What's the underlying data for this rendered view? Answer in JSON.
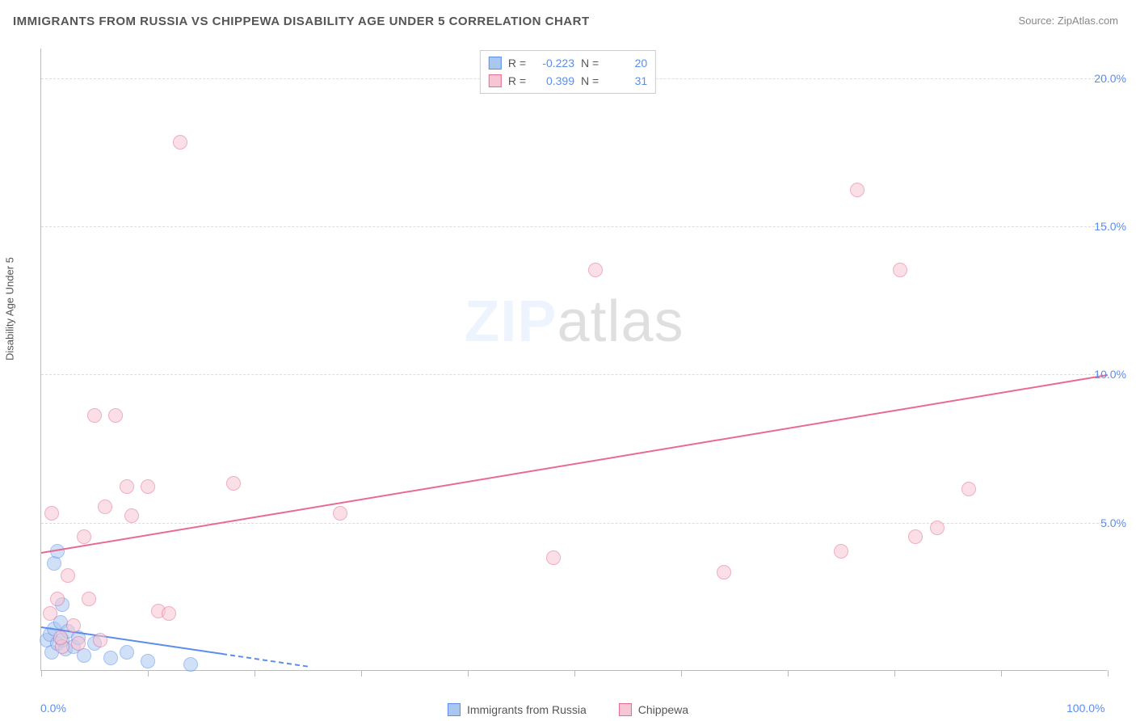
{
  "title": "IMMIGRANTS FROM RUSSIA VS CHIPPEWA DISABILITY AGE UNDER 5 CORRELATION CHART",
  "source": "Source: ZipAtlas.com",
  "watermark": {
    "bold": "ZIP",
    "rest": "atlas"
  },
  "ylabel": "Disability Age Under 5",
  "xlim": [
    0,
    100
  ],
  "ylim": [
    0,
    21
  ],
  "x_ticks": [
    0,
    10,
    20,
    30,
    40,
    50,
    60,
    70,
    80,
    90,
    100
  ],
  "x_tick_labels": {
    "0": "0.0%",
    "100": "100.0%"
  },
  "y_gridlines": [
    5,
    10,
    15,
    20
  ],
  "y_tick_labels": {
    "5": "5.0%",
    "10": "10.0%",
    "15": "15.0%",
    "20": "20.0%"
  },
  "colors": {
    "series_a_fill": "#aac7ef",
    "series_a_stroke": "#5b8def",
    "series_b_fill": "#f7c6d4",
    "series_b_stroke": "#e86a92",
    "grid": "#dddddd",
    "axis": "#bbbbbb",
    "tick_text": "#5b8def",
    "text": "#555555"
  },
  "point_radius": 9,
  "point_opacity": 0.55,
  "series": [
    {
      "key": "russia",
      "label": "Immigrants from Russia",
      "fill": "#aac7ef",
      "stroke": "#5b8def",
      "R": "-0.223",
      "N": "20",
      "trend": {
        "x1": 0,
        "y1": 1.5,
        "x2": 17,
        "y2": 0.6,
        "dash_to_x": 25
      },
      "points": [
        [
          0.5,
          1.0
        ],
        [
          0.8,
          1.2
        ],
        [
          1.0,
          0.6
        ],
        [
          1.2,
          1.4
        ],
        [
          1.5,
          0.9
        ],
        [
          1.8,
          1.6
        ],
        [
          2.0,
          1.0
        ],
        [
          2.3,
          0.7
        ],
        [
          2.5,
          1.3
        ],
        [
          1.2,
          3.6
        ],
        [
          1.5,
          4.0
        ],
        [
          3.0,
          0.8
        ],
        [
          3.5,
          1.1
        ],
        [
          4.0,
          0.5
        ],
        [
          5.0,
          0.9
        ],
        [
          6.5,
          0.4
        ],
        [
          8.0,
          0.6
        ],
        [
          10.0,
          0.3
        ],
        [
          2.0,
          2.2
        ],
        [
          14.0,
          0.2
        ]
      ]
    },
    {
      "key": "chippewa",
      "label": "Chippewa",
      "fill": "#f7c6d4",
      "stroke": "#e86a92",
      "R": "0.399",
      "N": "31",
      "trend": {
        "x1": 0,
        "y1": 4.0,
        "x2": 100,
        "y2": 10.0
      },
      "points": [
        [
          1.0,
          5.3
        ],
        [
          1.5,
          2.4
        ],
        [
          2.0,
          0.8
        ],
        [
          2.5,
          3.2
        ],
        [
          3.0,
          1.5
        ],
        [
          4.0,
          4.5
        ],
        [
          5.0,
          8.6
        ],
        [
          6.0,
          5.5
        ],
        [
          7.0,
          8.6
        ],
        [
          8.0,
          6.2
        ],
        [
          8.5,
          5.2
        ],
        [
          10.0,
          6.2
        ],
        [
          11.0,
          2.0
        ],
        [
          12.0,
          1.9
        ],
        [
          13.0,
          17.8
        ],
        [
          18.0,
          6.3
        ],
        [
          28.0,
          5.3
        ],
        [
          48.0,
          3.8
        ],
        [
          52.0,
          13.5
        ],
        [
          64.0,
          3.3
        ],
        [
          75.0,
          4.0
        ],
        [
          76.5,
          16.2
        ],
        [
          80.5,
          13.5
        ],
        [
          82.0,
          4.5
        ],
        [
          84.0,
          4.8
        ],
        [
          87.0,
          6.1
        ],
        [
          0.8,
          1.9
        ],
        [
          3.5,
          0.9
        ],
        [
          5.5,
          1.0
        ],
        [
          1.8,
          1.1
        ],
        [
          4.5,
          2.4
        ]
      ]
    }
  ],
  "stats_labels": {
    "R": "R =",
    "N": "N ="
  }
}
